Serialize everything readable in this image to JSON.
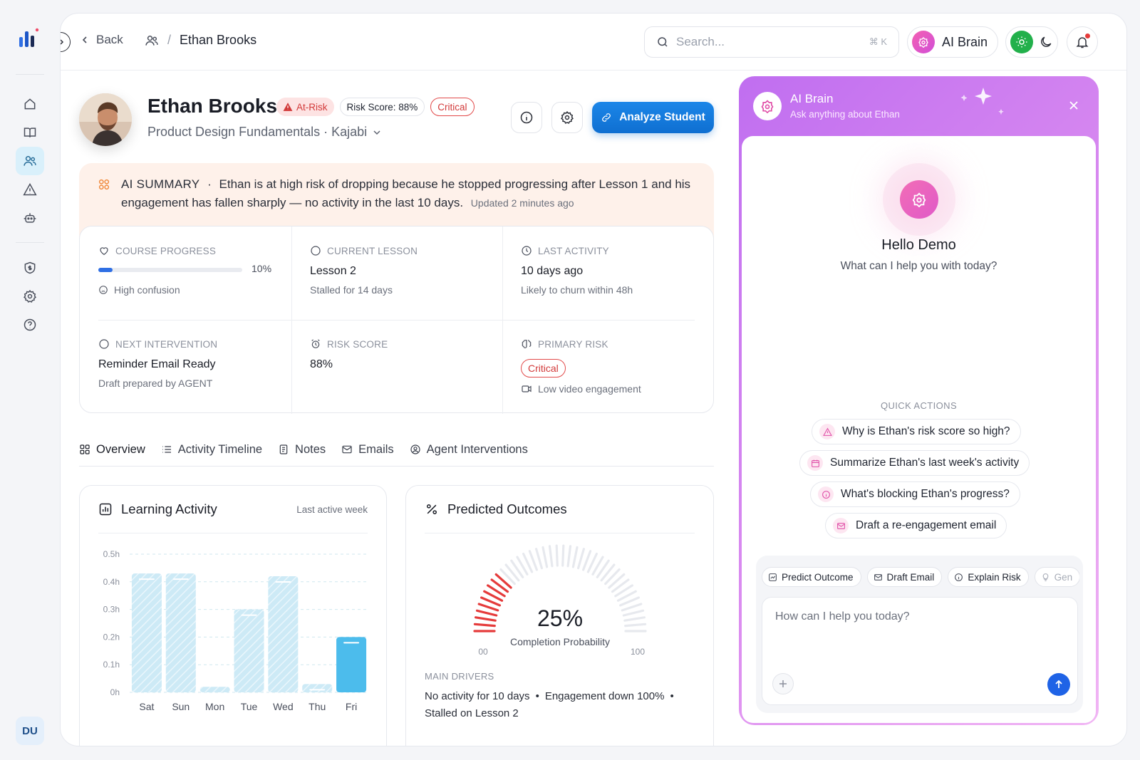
{
  "nav": {
    "back_label": "Back",
    "breadcrumb_current": "Ethan Brooks",
    "user_initials": "DU"
  },
  "search": {
    "placeholder": "Search...",
    "shortcut": "⌘ K"
  },
  "header": {
    "ai_brain_label": "AI Brain"
  },
  "student": {
    "name": "Ethan Brooks",
    "status_badge": "At-Risk",
    "risk_score_badge": "Risk Score: 88%",
    "severity_badge": "Critical",
    "course": "Product Design Fundamentals · Kajabi",
    "analyze_label": "Analyze Student"
  },
  "summary": {
    "label": "AI SUMMARY",
    "bullet": "·",
    "text": "Ethan is at high risk of dropping because he stopped progressing after Lesson 1 and his engagement has fallen sharply — no activity in the last 10 days.",
    "updated": "Updated 2 minutes ago"
  },
  "stats": {
    "course_progress": {
      "label": "COURSE PROGRESS",
      "value": "10%",
      "progress": 0.1,
      "sub": "High confusion"
    },
    "current_lesson": {
      "label": "CURRENT LESSON",
      "value": "Lesson 2",
      "sub": "Stalled for 14 days"
    },
    "last_activity": {
      "label": "LAST ACTIVITY",
      "value": "10 days ago",
      "sub": "Likely to churn within 48h"
    },
    "next_intervention": {
      "label": "NEXT INTERVENTION",
      "value": "Reminder Email Ready",
      "sub": "Draft prepared by AGENT"
    },
    "risk_score": {
      "label": "RISK SCORE",
      "value": "88%"
    },
    "primary_risk": {
      "label": "PRIMARY RISK",
      "value": "Critical",
      "sub": "Low video engagement"
    }
  },
  "tabs": [
    {
      "label": "Overview"
    },
    {
      "label": "Activity Timeline"
    },
    {
      "label": "Notes"
    },
    {
      "label": "Emails"
    },
    {
      "label": "Agent Interventions"
    }
  ],
  "learning_card": {
    "title": "Learning Activity",
    "meta": "Last active week"
  },
  "chart_data": {
    "type": "bar",
    "title": "Learning Activity",
    "categories": [
      "Sat",
      "Sun",
      "Mon",
      "Tue",
      "Wed",
      "Thu",
      "Fri"
    ],
    "values": [
      0.43,
      0.43,
      0.02,
      0.3,
      0.42,
      0.03,
      0.2
    ],
    "y_ticks": [
      "0h",
      "0.1h",
      "0.2h",
      "0.3h",
      "0.4h",
      "0.5h"
    ],
    "ylim": [
      0,
      0.5
    ],
    "highlight_index": 6,
    "grid": true,
    "colors": {
      "bar": "#cdeaf6",
      "highlight": "#4cbcec",
      "grid": "#cfe7ef"
    }
  },
  "outcomes_card": {
    "title": "Predicted Outcomes",
    "percent_label": "25%",
    "percent": 25,
    "caption": "Completion Probability",
    "min_label": "00",
    "max_label": "100",
    "drivers_label": "MAIN DRIVERS",
    "drivers": [
      "No activity for 10 days",
      "Engagement down 100%",
      "Stalled on Lesson 2"
    ],
    "colors": {
      "active": "#e53b3b",
      "inactive": "#e7e9ee"
    }
  },
  "ai_panel": {
    "title": "AI Brain",
    "subtitle": "Ask anything about Ethan",
    "hello": "Hello Demo",
    "help": "What can I help you with today?",
    "quick_actions_label": "QUICK ACTIONS",
    "quick_actions": [
      {
        "label": "Why is Ethan's risk score so high?",
        "icon": "alert-triangle-icon"
      },
      {
        "label": "Summarize Ethan's last week's activity",
        "icon": "calendar-icon"
      },
      {
        "label": "What's blocking Ethan's progress?",
        "icon": "info-icon"
      },
      {
        "label": "Draft a re-engagement email",
        "icon": "mail-icon"
      }
    ],
    "chips": [
      "Predict Outcome",
      "Draft Email",
      "Explain Risk",
      "Gen"
    ],
    "input_placeholder": "How can I help you today?"
  }
}
